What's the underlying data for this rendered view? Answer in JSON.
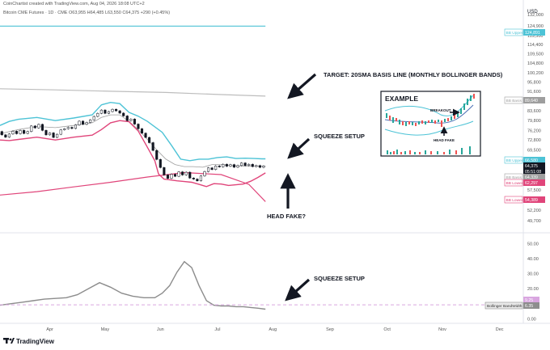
{
  "header": {
    "line1": "CoinChartist created with TradingView.com, Aug 04, 2026 18:08 UTC+2",
    "line2": "Bitcoin CME Futures · 1D · CME  O63,955  H64,485  L63,550  C64,375  +290 (+0.45%)"
  },
  "currency": "USD",
  "logo_text": "TradingView",
  "colors": {
    "bb_upper": "#4dc3d6",
    "bb_lower": "#e0457a",
    "bb_basis": "#9e9e9e",
    "monthly_basis": "#bdbdbd",
    "up_candle": "#ffffff",
    "down_candle": "#131722",
    "bandwidth": "#8c8c8c",
    "bandwidth_ref": "#d9a6e0",
    "bandwidth_label_bg": "#8e8e8e"
  },
  "annotations": {
    "target": "TARGET: 20SMA BASIS LINE (MONTHLY BOLLINGER BANDS)",
    "squeeze_top": "SQUEEZE SETUP",
    "head_fake": "HEAD FAKE?",
    "squeeze_bottom": "SQUEEZE SETUP",
    "inset_title": "EXAMPLE",
    "inset_breakout": "BREAKOUT",
    "inset_head_fake": "HEAD FAKE"
  },
  "price_labels": [
    {
      "label": "BB Upper",
      "value": "124,891",
      "color": "#4dc3d6"
    },
    {
      "label": "BB Basis",
      "value": "89,640",
      "color": "#9e9e9e"
    },
    {
      "label": "BB Upper",
      "value": "66,580",
      "color": "#4dc3d6"
    },
    {
      "label": "",
      "value": "64,375",
      "color": "#131722"
    },
    {
      "label": "",
      "value": "05:51:08",
      "color": "#131722"
    },
    {
      "label": "BB Basis",
      "value": "64,339",
      "color": "#9e9e9e"
    },
    {
      "label": "BB Lower",
      "value": "62,297",
      "color": "#e0457a"
    },
    {
      "label": "BB Lower",
      "value": "54,389",
      "color": "#e0457a"
    }
  ],
  "bandwidth_labels": [
    {
      "label": "",
      "value": "9.25",
      "color": "#d9a6e0"
    },
    {
      "label": "Bollinger BandWidth",
      "value": "6.35",
      "color": "#8e8e8e"
    }
  ],
  "chart_data": [
    {
      "type": "line",
      "panel": "price",
      "title": "Bitcoin CME Futures · 1D · CME",
      "y_scale": "log",
      "ylim": [
        48000,
        136000
      ],
      "yticks": [
        49700,
        52200,
        54800,
        57500,
        60300,
        63200,
        66300,
        69500,
        72800,
        76200,
        79800,
        83600,
        87600,
        91600,
        95800,
        100200,
        104800,
        109500,
        114400,
        119500,
        124900,
        132000
      ],
      "ytick_labels": [
        "49,700",
        "52,200",
        "54,800",
        "57,500",
        "60,300",
        "63,200",
        "66,300",
        "69,500",
        "72,800",
        "76,200",
        "79,800",
        "83,600",
        "87,600",
        "91,600",
        "95,800",
        "100,200",
        "104,800",
        "109,500",
        "114,400",
        "119,500",
        "124,900",
        "132,000"
      ],
      "x_labels": [
        "Apr",
        "May",
        "Jun",
        "Jul",
        "Aug",
        "Sep",
        "Oct",
        "Nov",
        "Dec"
      ],
      "x_label_days": [
        27,
        57,
        87,
        118,
        148,
        179,
        210,
        240,
        271
      ],
      "xlim": [
        0,
        283
      ],
      "series": [
        {
          "name": "BB Upper",
          "x": [
            0,
            5,
            10,
            20,
            30,
            40,
            50,
            55,
            60,
            65,
            70,
            75,
            80,
            88,
            93,
            98,
            103,
            108,
            113,
            118,
            123,
            128,
            133,
            138,
            142,
            144
          ],
          "y": [
            78000,
            79500,
            80300,
            81000,
            79800,
            80800,
            82000,
            86000,
            87000,
            86500,
            83000,
            81500,
            79500,
            75500,
            71000,
            66500,
            66000,
            66500,
            66500,
            67000,
            67200,
            66700,
            66800,
            66700,
            66600,
            66580
          ]
        },
        {
          "name": "BB Basis",
          "x": [
            0,
            10,
            20,
            30,
            40,
            50,
            55,
            60,
            65,
            70,
            75,
            80,
            85,
            90,
            95,
            100,
            105,
            110,
            115,
            120,
            125,
            130,
            135,
            140,
            144
          ],
          "y": [
            75000,
            76500,
            77600,
            77200,
            78000,
            79000,
            81000,
            82000,
            82000,
            79500,
            76500,
            73000,
            69500,
            66500,
            64800,
            64200,
            64200,
            64000,
            64800,
            64800,
            64500,
            64400,
            64300,
            64300,
            64339
          ]
        },
        {
          "name": "BB Lower",
          "x": [
            0,
            5,
            10,
            20,
            30,
            40,
            50,
            55,
            60,
            65,
            70,
            75,
            80,
            84,
            86,
            89,
            92,
            96,
            100,
            104,
            108,
            112,
            116,
            120,
            124,
            128,
            132,
            136,
            140,
            144
          ],
          "y": [
            72800,
            72600,
            73000,
            73800,
            72800,
            73800,
            74500,
            76500,
            79000,
            79800,
            79400,
            76000,
            70300,
            66000,
            62000,
            60500,
            60300,
            60000,
            59800,
            59600,
            59000,
            58400,
            59200,
            59100,
            58700,
            58900,
            59100,
            59900,
            61000,
            62297
          ]
        },
        {
          "name": "Monthly BB Basis",
          "x": [
            0,
            30,
            60,
            90,
            120,
            144
          ],
          "y": [
            92800,
            92300,
            91700,
            91200,
            90300,
            89640
          ]
        },
        {
          "name": "Monthly BB Upper",
          "x": [
            0,
            144
          ],
          "y": [
            124891,
            124891
          ]
        },
        {
          "name": "Monthly BB Lower",
          "x": [
            0,
            20,
            40,
            60,
            80,
            100,
            120,
            135,
            144
          ],
          "y": [
            56100,
            57000,
            58300,
            59600,
            61100,
            62400,
            61800,
            59000,
            54389
          ]
        }
      ],
      "candles": [
        {
          "x": 1,
          "o": 75800,
          "c": 74600
        },
        {
          "x": 3,
          "o": 74600,
          "c": 73800
        },
        {
          "x": 5,
          "o": 73800,
          "c": 74900
        },
        {
          "x": 7,
          "o": 74900,
          "c": 75900
        },
        {
          "x": 9,
          "o": 75900,
          "c": 75000
        },
        {
          "x": 11,
          "o": 75000,
          "c": 76200
        },
        {
          "x": 13,
          "o": 76200,
          "c": 75100
        },
        {
          "x": 15,
          "o": 75100,
          "c": 75800
        },
        {
          "x": 17,
          "o": 75800,
          "c": 77800
        },
        {
          "x": 19,
          "o": 77800,
          "c": 77100
        },
        {
          "x": 21,
          "o": 77100,
          "c": 78400
        },
        {
          "x": 23,
          "o": 78400,
          "c": 76200
        },
        {
          "x": 25,
          "o": 76200,
          "c": 74600
        },
        {
          "x": 27,
          "o": 74600,
          "c": 75300
        },
        {
          "x": 29,
          "o": 75300,
          "c": 73700
        },
        {
          "x": 31,
          "o": 73700,
          "c": 74800
        },
        {
          "x": 33,
          "o": 74800,
          "c": 76400
        },
        {
          "x": 35,
          "o": 76400,
          "c": 76800
        },
        {
          "x": 37,
          "o": 76800,
          "c": 77300
        },
        {
          "x": 39,
          "o": 77300,
          "c": 76900
        },
        {
          "x": 41,
          "o": 76900,
          "c": 78200
        },
        {
          "x": 43,
          "o": 78200,
          "c": 79600
        },
        {
          "x": 45,
          "o": 79600,
          "c": 78400
        },
        {
          "x": 47,
          "o": 78400,
          "c": 79100
        },
        {
          "x": 49,
          "o": 79100,
          "c": 80100
        },
        {
          "x": 51,
          "o": 80100,
          "c": 81400
        },
        {
          "x": 53,
          "o": 81400,
          "c": 82600
        },
        {
          "x": 55,
          "o": 82600,
          "c": 83900
        },
        {
          "x": 57,
          "o": 83900,
          "c": 82600
        },
        {
          "x": 59,
          "o": 82600,
          "c": 83300
        },
        {
          "x": 61,
          "o": 83300,
          "c": 84200
        },
        {
          "x": 63,
          "o": 84200,
          "c": 83600
        },
        {
          "x": 65,
          "o": 83600,
          "c": 82700
        },
        {
          "x": 67,
          "o": 82700,
          "c": 81600
        },
        {
          "x": 69,
          "o": 81600,
          "c": 79800
        },
        {
          "x": 71,
          "o": 79800,
          "c": 80400
        },
        {
          "x": 73,
          "o": 80400,
          "c": 78500
        },
        {
          "x": 75,
          "o": 78500,
          "c": 76800
        },
        {
          "x": 77,
          "o": 76800,
          "c": 75200
        },
        {
          "x": 79,
          "o": 75200,
          "c": 73700
        },
        {
          "x": 81,
          "o": 73700,
          "c": 71900
        },
        {
          "x": 83,
          "o": 71900,
          "c": 69300
        },
        {
          "x": 85,
          "o": 69300,
          "c": 66400
        },
        {
          "x": 87,
          "o": 66400,
          "c": 63900
        },
        {
          "x": 89,
          "o": 63900,
          "c": 61700
        },
        {
          "x": 91,
          "o": 61700,
          "c": 60700
        },
        {
          "x": 93,
          "o": 60700,
          "c": 61900
        },
        {
          "x": 95,
          "o": 61900,
          "c": 61300
        },
        {
          "x": 97,
          "o": 61300,
          "c": 62600
        },
        {
          "x": 99,
          "o": 62600,
          "c": 61700
        },
        {
          "x": 101,
          "o": 61700,
          "c": 62500
        },
        {
          "x": 103,
          "o": 62500,
          "c": 60800
        },
        {
          "x": 105,
          "o": 60800,
          "c": 60500
        },
        {
          "x": 107,
          "o": 60500,
          "c": 60000
        },
        {
          "x": 109,
          "o": 60000,
          "c": 61400
        },
        {
          "x": 111,
          "o": 61400,
          "c": 62700
        },
        {
          "x": 113,
          "o": 62700,
          "c": 63800
        },
        {
          "x": 115,
          "o": 63800,
          "c": 63300
        },
        {
          "x": 117,
          "o": 63300,
          "c": 64400
        },
        {
          "x": 119,
          "o": 64400,
          "c": 64100
        },
        {
          "x": 121,
          "o": 64100,
          "c": 64900
        },
        {
          "x": 123,
          "o": 64900,
          "c": 64300
        },
        {
          "x": 125,
          "o": 64300,
          "c": 64800
        },
        {
          "x": 127,
          "o": 64800,
          "c": 64000
        },
        {
          "x": 129,
          "o": 64000,
          "c": 64500
        },
        {
          "x": 131,
          "o": 64500,
          "c": 65300
        },
        {
          "x": 133,
          "o": 65300,
          "c": 64500
        },
        {
          "x": 135,
          "o": 64500,
          "c": 64900
        },
        {
          "x": 137,
          "o": 64900,
          "c": 64200
        },
        {
          "x": 139,
          "o": 64200,
          "c": 64500
        },
        {
          "x": 141,
          "o": 64500,
          "c": 63955
        },
        {
          "x": 143,
          "o": 63955,
          "c": 64375
        }
      ]
    },
    {
      "type": "line",
      "panel": "bandwidth",
      "title": "Bollinger BandWidth",
      "ylim": [
        -2,
        54
      ],
      "yticks": [
        0,
        10,
        20,
        30,
        40,
        50
      ],
      "ytick_labels": [
        "0.00",
        "10.00",
        "20.00",
        "30.00",
        "40.00",
        "50.00"
      ],
      "x_labels": [
        "Apr",
        "May",
        "Jun",
        "Jul",
        "Aug",
        "Sep",
        "Oct",
        "Nov",
        "Dec"
      ],
      "x_label_days": [
        27,
        57,
        87,
        118,
        148,
        179,
        210,
        240,
        271
      ],
      "xlim": [
        0,
        283
      ],
      "series": [
        {
          "name": "Bollinger BandWidth",
          "x": [
            0,
            6,
            12,
            18,
            24,
            30,
            36,
            42,
            48,
            54,
            60,
            66,
            72,
            78,
            84,
            88,
            92,
            96,
            100,
            104,
            108,
            112,
            116,
            120,
            124,
            128,
            132,
            136,
            140,
            144
          ],
          "y": [
            9,
            10,
            11,
            12,
            13,
            13.5,
            14,
            16,
            20,
            24,
            21,
            17,
            15,
            14,
            14,
            17,
            22,
            31,
            38,
            34,
            22,
            12,
            9,
            8.5,
            8.5,
            8,
            8,
            7.5,
            7,
            6.35
          ]
        },
        {
          "name": "BandWidth reference",
          "x": [
            0,
            283
          ],
          "y": [
            9.25,
            9.25
          ]
        }
      ]
    }
  ]
}
